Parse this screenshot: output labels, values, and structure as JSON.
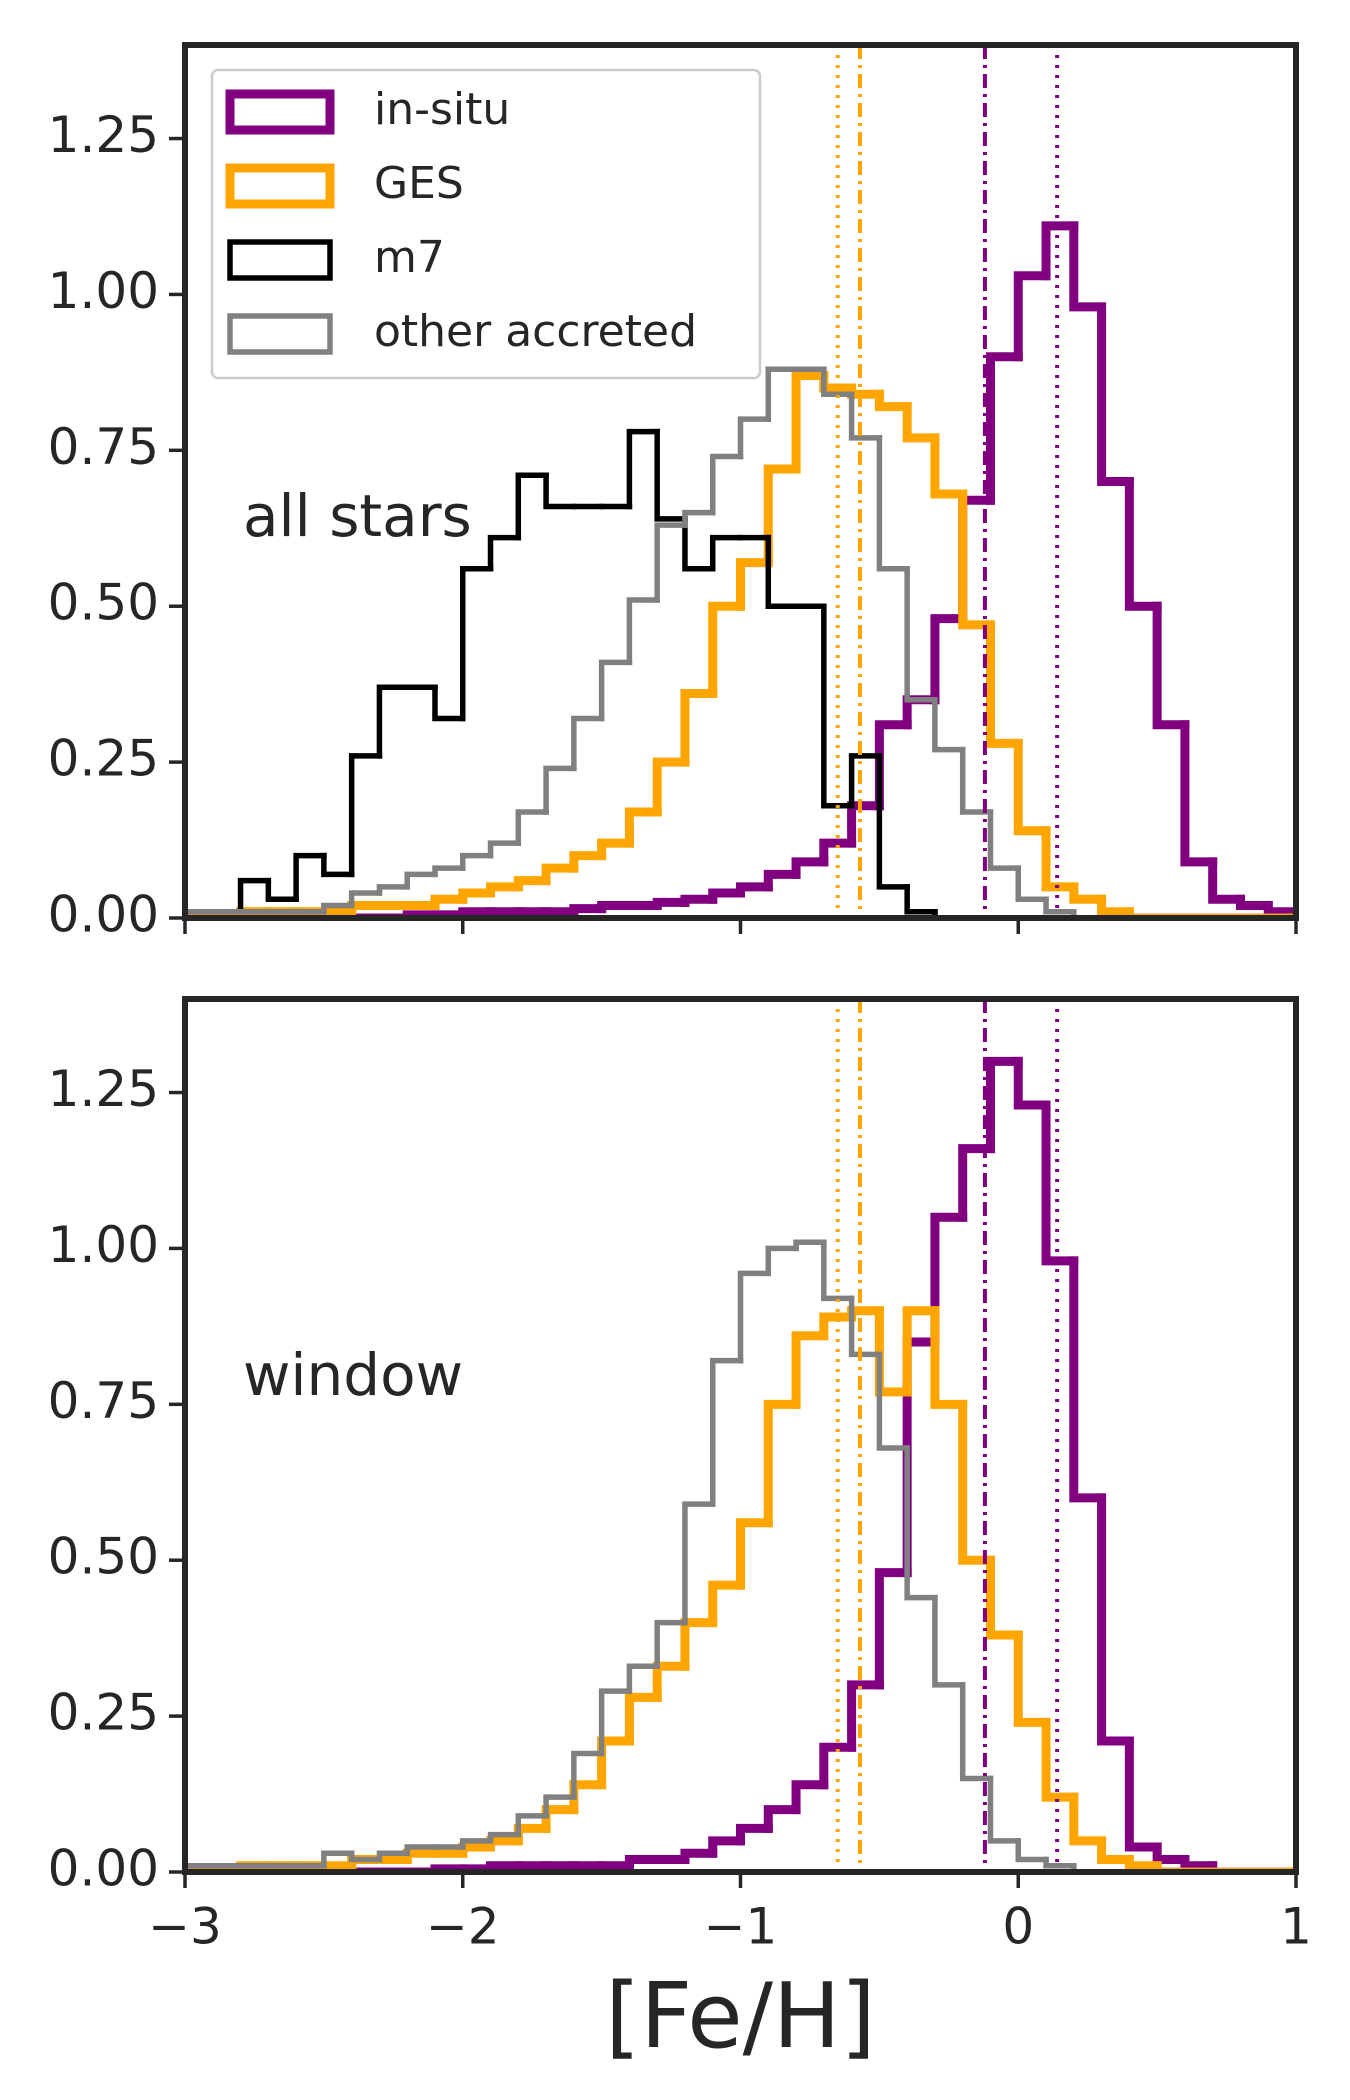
{
  "chart_data": [
    {
      "type": "histogram",
      "annotation": "all stars",
      "legend": "upper left",
      "xlim": [
        -3,
        1
      ],
      "ylim": [
        0,
        1.4
      ],
      "xticks": [
        -3,
        -2,
        -1,
        0,
        1
      ],
      "xticklabels": false,
      "yticks": [
        {
          "value": 0,
          "label": "0.00"
        },
        0.25,
        {
          "value": 0.5,
          "label": "0.50"
        },
        0.75,
        {
          "value": 1,
          "label": "1.00"
        },
        1.25
      ],
      "bins": [
        -3.0,
        -2.9,
        -2.8,
        -2.7,
        -2.6,
        -2.5,
        -2.4,
        -2.3,
        -2.2,
        -2.1,
        -2.0,
        -1.9,
        -1.8,
        -1.7,
        -1.6,
        -1.5,
        -1.4,
        -1.3,
        -1.2,
        -1.1,
        -1.0,
        -0.9,
        -0.8,
        -0.7,
        -0.6,
        -0.5,
        -0.4,
        -0.3,
        -0.2,
        -0.1,
        0.0,
        0.1,
        0.2,
        0.3,
        0.4,
        0.5,
        0.6,
        0.7,
        0.8,
        0.9,
        1.0
      ],
      "series": [
        {
          "name": "in-situ",
          "color": "#800080",
          "width": 9,
          "values": [
            0,
            0,
            0,
            0,
            0,
            0,
            0,
            0,
            0.005,
            0.005,
            0.01,
            0.01,
            0.01,
            0.01,
            0.015,
            0.02,
            0.02,
            0.025,
            0.03,
            0.04,
            0.05,
            0.07,
            0.09,
            0.12,
            0.18,
            0.31,
            0.35,
            0.48,
            0.67,
            0.9,
            1.03,
            1.11,
            0.98,
            0.7,
            0.5,
            0.31,
            0.09,
            0.03,
            0.02,
            0.01
          ]
        },
        {
          "name": "GES",
          "color": "#FFA500",
          "width": 9,
          "values": [
            0,
            0,
            0.01,
            0.01,
            0.01,
            0.01,
            0.02,
            0.02,
            0.02,
            0.03,
            0.04,
            0.05,
            0.06,
            0.08,
            0.1,
            0.12,
            0.17,
            0.25,
            0.36,
            0.5,
            0.57,
            0.72,
            0.87,
            0.85,
            0.84,
            0.82,
            0.77,
            0.68,
            0.47,
            0.28,
            0.14,
            0.05,
            0.03,
            0.01,
            0,
            0,
            0,
            0,
            0,
            0
          ]
        },
        {
          "name": "m7",
          "color": "#000000",
          "width": 5.5,
          "values": [
            0.01,
            0.01,
            0.06,
            0.03,
            0.1,
            0.07,
            0.26,
            0.37,
            0.37,
            0.32,
            0.56,
            0.61,
            0.71,
            0.66,
            0.66,
            0.66,
            0.78,
            0.64,
            0.56,
            0.61,
            0.61,
            0.5,
            0.5,
            0.18,
            0.26,
            0.05,
            0.01,
            0,
            0,
            0,
            0,
            0,
            0,
            0,
            0,
            0,
            0,
            0,
            0,
            0
          ]
        },
        {
          "name": "other accreted",
          "color": "#808080",
          "width": 5.5,
          "values": [
            0.01,
            0.01,
            0.01,
            0.01,
            0.01,
            0.02,
            0.04,
            0.05,
            0.07,
            0.08,
            0.1,
            0.12,
            0.17,
            0.24,
            0.32,
            0.41,
            0.51,
            0.63,
            0.65,
            0.74,
            0.8,
            0.88,
            0.88,
            0.84,
            0.77,
            0.56,
            0.35,
            0.27,
            0.17,
            0.08,
            0.03,
            0.01,
            0,
            0,
            0,
            0,
            0,
            0,
            0,
            0
          ]
        }
      ],
      "vlines": [
        {
          "x": -0.65,
          "color": "#FFA500",
          "style": "dotted"
        },
        {
          "x": -0.57,
          "color": "#FFA500",
          "style": "dashdot"
        },
        {
          "x": -0.12,
          "color": "#800080",
          "style": "dashdot"
        },
        {
          "x": 0.14,
          "color": "#800080",
          "style": "dotted"
        }
      ]
    },
    {
      "type": "histogram",
      "annotation": "window",
      "xlabel": "[Fe/H]",
      "xlim": [
        -3,
        1
      ],
      "ylim": [
        0,
        1.4
      ],
      "xticks": [
        {
          "value": -3,
          "label": "−3"
        },
        {
          "value": -2,
          "label": "−2"
        },
        {
          "value": -1,
          "label": "−1"
        },
        0,
        1
      ],
      "xticklabels": true,
      "yticks": [
        {
          "value": 0,
          "label": "0.00"
        },
        0.25,
        {
          "value": 0.5,
          "label": "0.50"
        },
        0.75,
        {
          "value": 1,
          "label": "1.00"
        },
        1.25
      ],
      "bins": [
        -3.0,
        -2.9,
        -2.8,
        -2.7,
        -2.6,
        -2.5,
        -2.4,
        -2.3,
        -2.2,
        -2.1,
        -2.0,
        -1.9,
        -1.8,
        -1.7,
        -1.6,
        -1.5,
        -1.4,
        -1.3,
        -1.2,
        -1.1,
        -1.0,
        -0.9,
        -0.8,
        -0.7,
        -0.6,
        -0.5,
        -0.4,
        -0.3,
        -0.2,
        -0.1,
        0.0,
        0.1,
        0.2,
        0.3,
        0.4,
        0.5,
        0.6,
        0.7,
        0.8,
        0.9,
        1.0
      ],
      "series": [
        {
          "name": "in-situ",
          "color": "#800080",
          "width": 9,
          "values": [
            0,
            0,
            0,
            0,
            0,
            0,
            0,
            0,
            0,
            0.005,
            0.005,
            0.01,
            0.01,
            0.01,
            0.01,
            0.01,
            0.02,
            0.02,
            0.03,
            0.05,
            0.07,
            0.1,
            0.14,
            0.2,
            0.3,
            0.48,
            0.85,
            1.05,
            1.16,
            1.3,
            1.23,
            0.98,
            0.6,
            0.21,
            0.04,
            0.02,
            0.01,
            0,
            0,
            0
          ]
        },
        {
          "name": "GES",
          "color": "#FFA500",
          "width": 9,
          "values": [
            0,
            0,
            0.01,
            0.01,
            0.01,
            0.01,
            0.02,
            0.02,
            0.03,
            0.03,
            0.04,
            0.05,
            0.07,
            0.1,
            0.14,
            0.21,
            0.28,
            0.33,
            0.4,
            0.46,
            0.56,
            0.75,
            0.86,
            0.89,
            0.9,
            0.77,
            0.9,
            0.75,
            0.5,
            0.38,
            0.24,
            0.12,
            0.05,
            0.02,
            0.01,
            0,
            0,
            0,
            0,
            0
          ]
        },
        {
          "name": "other accreted",
          "color": "#808080",
          "width": 5.5,
          "values": [
            0.01,
            0.01,
            0.01,
            0.01,
            0.01,
            0.03,
            0.02,
            0.03,
            0.04,
            0.04,
            0.05,
            0.06,
            0.09,
            0.12,
            0.19,
            0.29,
            0.33,
            0.4,
            0.59,
            0.82,
            0.96,
            1.0,
            1.01,
            0.92,
            0.83,
            0.68,
            0.44,
            0.3,
            0.15,
            0.05,
            0.02,
            0.01,
            0,
            0,
            0,
            0,
            0,
            0,
            0,
            0
          ]
        }
      ],
      "vlines": [
        {
          "x": -0.65,
          "color": "#FFA500",
          "style": "dotted"
        },
        {
          "x": -0.57,
          "color": "#FFA500",
          "style": "dashdot"
        },
        {
          "x": -0.12,
          "color": "#800080",
          "style": "dashdot"
        },
        {
          "x": 0.14,
          "color": "#800080",
          "style": "dotted"
        }
      ]
    }
  ]
}
